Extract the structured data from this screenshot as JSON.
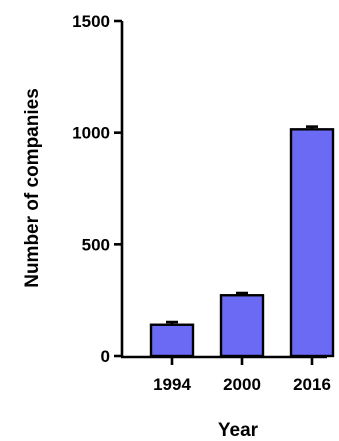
{
  "chart_data": {
    "type": "bar",
    "title": "",
    "xlabel": "Year",
    "ylabel": "Number of companies",
    "categories": [
      "1994",
      "2000",
      "2016"
    ],
    "values": [
      140,
      272,
      1015
    ],
    "error": [
      12,
      10,
      12
    ],
    "ylim": [
      0,
      1500
    ],
    "yticks": [
      0,
      500,
      1000,
      1500
    ],
    "ytick_labels": [
      "0",
      "500",
      "1000",
      "1500"
    ],
    "bar_color": "#6a6af4",
    "bar_edge_color": "#000000",
    "grid": false,
    "legend": "none"
  }
}
